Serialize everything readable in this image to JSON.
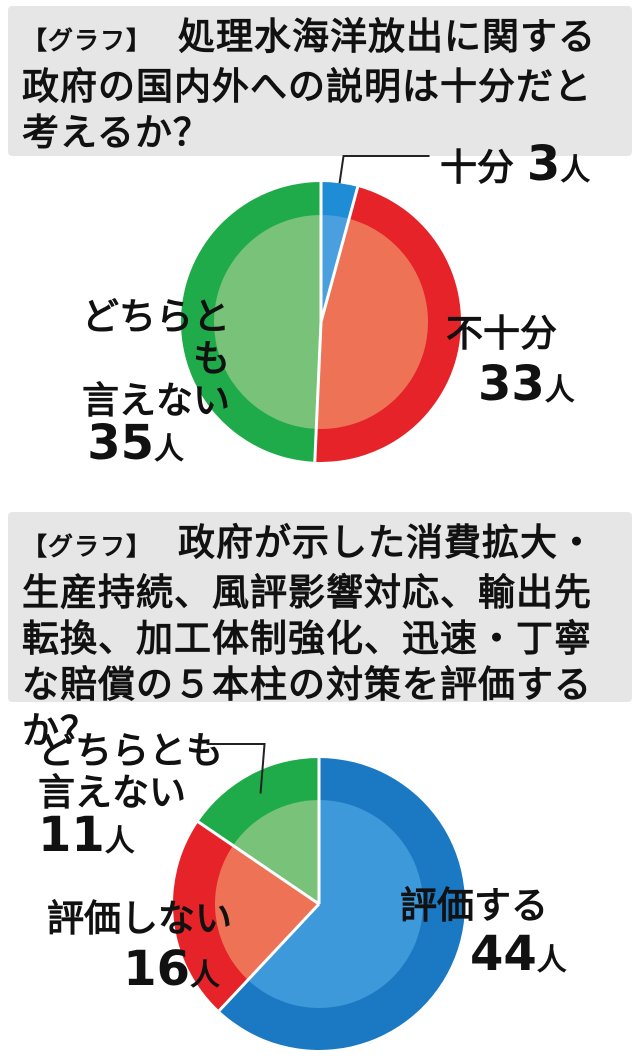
{
  "chart_data": [
    {
      "type": "pie",
      "tag": "【グラフ】",
      "title": "処理水海洋放出に関する政府の国内外への説明は十分だと考えるか？",
      "slices": [
        {
          "label": "十分",
          "value": 3,
          "unit": "人",
          "outer_color": "#1f8cd6",
          "inner_color": "#4aa0de"
        },
        {
          "label": "不十分",
          "value": 33,
          "unit": "人",
          "outer_color": "#e52329",
          "inner_color": "#ee7255"
        },
        {
          "label": "どちらとも言えない",
          "label_lines": [
            "どちらとも",
            "言えない"
          ],
          "value": 35,
          "unit": "人",
          "outer_color": "#1fab4a",
          "inner_color": "#78c27a"
        }
      ]
    },
    {
      "type": "pie",
      "tag": "【グラフ】",
      "title": "政府が示した消費拡大・生産持続、風評影響対応、輸出先転換、加工体制強化、迅速・丁寧な賠償の５本柱の対策を評価するか？",
      "slices": [
        {
          "label": "評価する",
          "value": 44,
          "unit": "人",
          "outer_color": "#1b79c4",
          "inner_color": "#3d99d9"
        },
        {
          "label": "評価しない",
          "value": 16,
          "unit": "人",
          "outer_color": "#e52329",
          "inner_color": "#ee7255"
        },
        {
          "label": "どちらとも言えない",
          "label_lines": [
            "どちらとも",
            "言えない"
          ],
          "value": 11,
          "unit": "人",
          "outer_color": "#1fab4a",
          "inner_color": "#78c27a"
        }
      ]
    }
  ]
}
